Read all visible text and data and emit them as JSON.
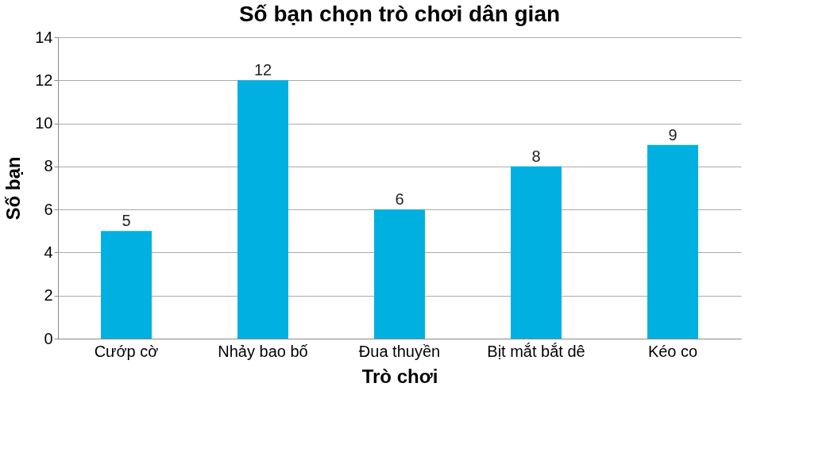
{
  "chart_data": {
    "type": "bar",
    "title": "Số bạn chọn trò chơi dân gian",
    "xlabel": "Trò chơi",
    "ylabel": "Số bạn",
    "categories": [
      "Cướp cờ",
      "Nhảy bao bố",
      "Đua thuyền",
      "Bịt mắt bắt dê",
      "Kéo co"
    ],
    "values": [
      5,
      12,
      6,
      8,
      9
    ],
    "color": "#00b0e0",
    "ylim": [
      0,
      14
    ],
    "yticks": [
      0,
      2,
      4,
      6,
      8,
      10,
      12,
      14
    ],
    "grid": "y",
    "data_labels": true
  }
}
